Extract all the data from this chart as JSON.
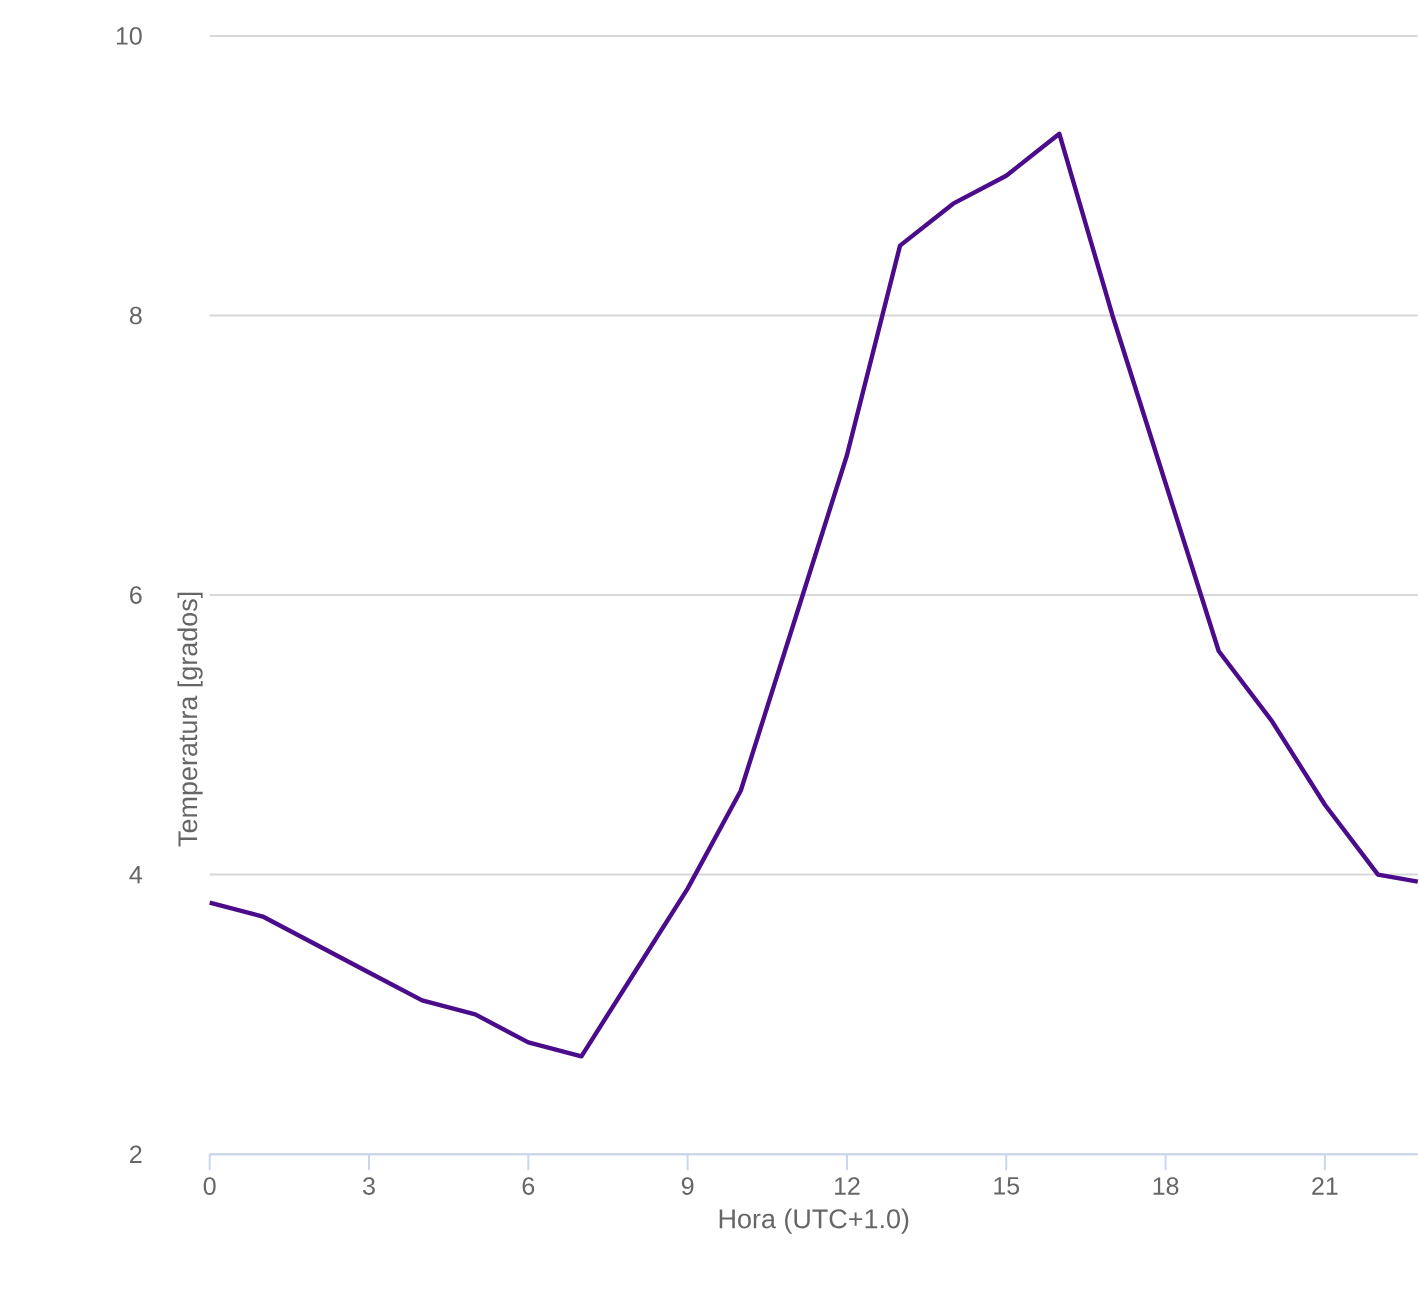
{
  "chart_data": {
    "type": "line",
    "xlabel": "Hora (UTC+1.0)",
    "ylabel": "Temperatura [grados]",
    "x": [
      0,
      1,
      2,
      3,
      4,
      5,
      6,
      7,
      8,
      9,
      10,
      11,
      12,
      13,
      14,
      15,
      16,
      17,
      18,
      19,
      20,
      21,
      22,
      22.75
    ],
    "series": [
      {
        "color": "#4b0c8c",
        "values": [
          3.8,
          3.7,
          3.5,
          3.3,
          3.1,
          3.0,
          2.8,
          2.7,
          3.3,
          3.9,
          4.6,
          5.8,
          7.0,
          8.5,
          8.8,
          9.0,
          9.3,
          8.0,
          6.8,
          5.6,
          5.1,
          4.5,
          4.0,
          3.95
        ]
      }
    ],
    "xlim": [
      0,
      22.75
    ],
    "ylim": [
      2,
      10
    ],
    "xticks": [
      0,
      3,
      6,
      9,
      12,
      15,
      18,
      21
    ],
    "yticks": [
      2,
      4,
      6,
      8,
      10
    ],
    "grid": "y",
    "marker": "none",
    "line_style": "solid"
  }
}
